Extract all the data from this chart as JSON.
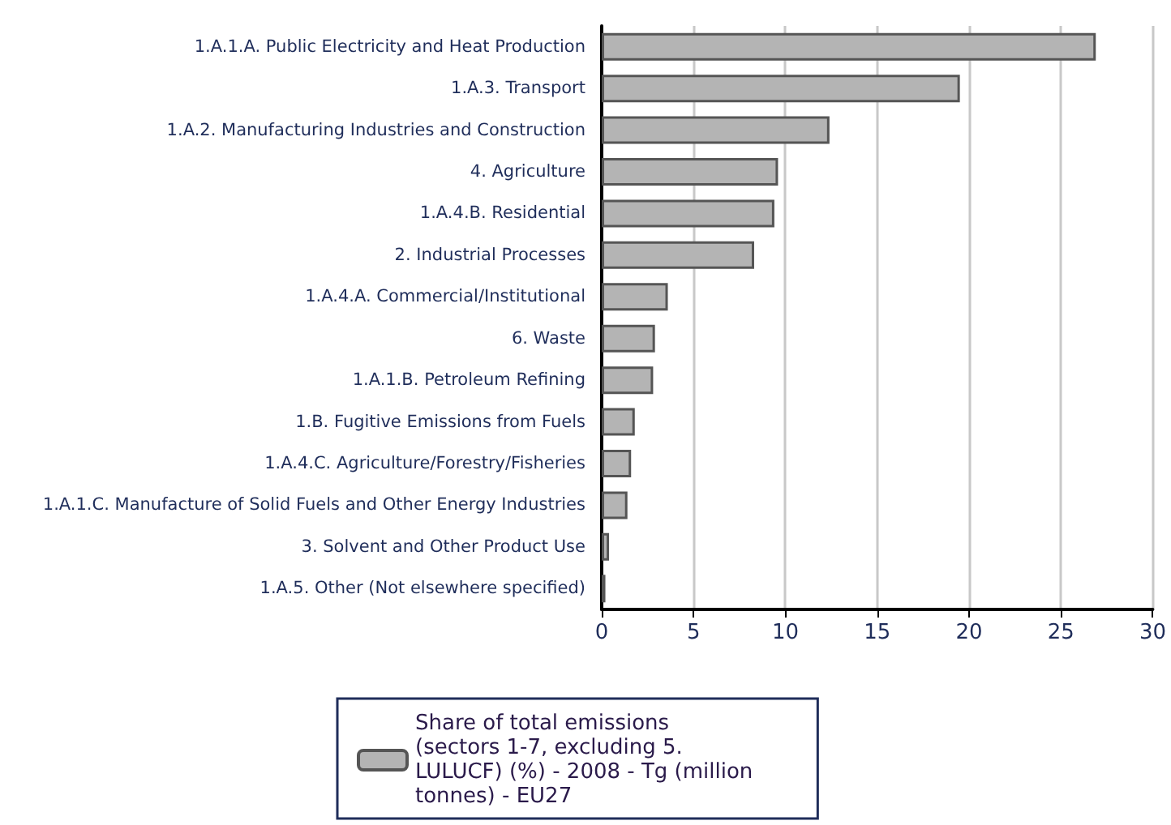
{
  "chart_data": {
    "type": "bar",
    "orientation": "horizontal",
    "categories": [
      "1.A.1.A. Public Electricity and Heat Production",
      "1.A.3. Transport",
      "1.A.2. Manufacturing Industries and Construction",
      "4. Agriculture",
      "1.A.4.B. Residential",
      "2. Industrial Processes",
      "1.A.4.A. Commercial/Institutional",
      "6. Waste",
      "1.A.1.B. Petroleum Refining",
      "1.B. Fugitive Emissions from Fuels",
      "1.A.4.C. Agriculture/Forestry/Fisheries",
      "1.A.1.C. Manufacture of Solid Fuels and Other Energy Industries",
      "3. Solvent and Other Product Use",
      "1.A.5. Other (Not elsewhere specified)"
    ],
    "series": [
      {
        "name": "Share of total emissions (sectors 1-7, excluding 5. LULUCF) (%) - 2008 - Tg (million tonnes) - EU27",
        "color": "#b4b4b4",
        "values": [
          26.9,
          19.5,
          12.4,
          9.6,
          9.4,
          8.3,
          3.6,
          2.9,
          2.8,
          1.8,
          1.6,
          1.4,
          0.4,
          0.2
        ]
      }
    ],
    "xlim": [
      0,
      30
    ],
    "xticks": [
      0,
      5,
      10,
      15,
      20,
      25,
      30
    ],
    "grid": "x",
    "legend": "bottom"
  }
}
